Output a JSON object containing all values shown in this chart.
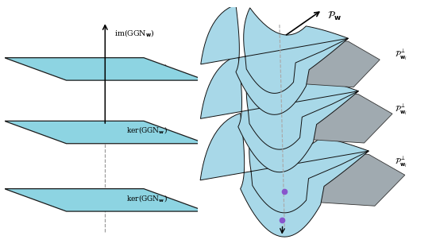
{
  "background_color": "#ffffff",
  "plane_color": "#8dd4e2",
  "plane_edge_color": "#1a1a1a",
  "manifold_color": "#a8d8e8",
  "gray_color": "#a0aab0",
  "fig_width": 5.54,
  "fig_height": 3.16,
  "dpi": 100,
  "axis_label_im": "im(GGN$_{\\mathbf{w}}$)",
  "right_top_label": "$\\mathcal{P}_{\\mathbf{w}}$",
  "ker_label": "ker(GGN$_{\\mathbf{w}}$)"
}
